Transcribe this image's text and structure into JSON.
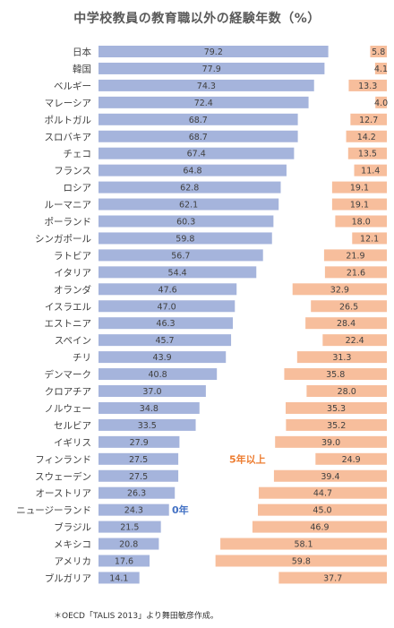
{
  "chart_data": {
    "type": "bar",
    "title": "中学校教員の教育職以外の経験年数（%）",
    "categories": [
      "日本",
      "韓国",
      "ベルギー",
      "マレーシア",
      "ポルトガル",
      "スロバキア",
      "チェコ",
      "フランス",
      "ロシア",
      "ルーマニア",
      "ポーランド",
      "シンガポール",
      "ラトビア",
      "イタリア",
      "オランダ",
      "イスラエル",
      "エストニア",
      "スペイン",
      "チリ",
      "デンマーク",
      "クロアチア",
      "ノルウェー",
      "セルビア",
      "イギリス",
      "フィンランド",
      "スウェーデン",
      "オーストリア",
      "ニュージーランド",
      "ブラジル",
      "メキシコ",
      "アメリカ",
      "ブルガリア"
    ],
    "series": [
      {
        "name": "0年",
        "color": "#a5b4dc",
        "values": [
          79.2,
          77.9,
          74.3,
          72.4,
          68.7,
          68.7,
          67.4,
          64.8,
          62.8,
          62.1,
          60.3,
          59.8,
          56.7,
          54.4,
          47.6,
          47.0,
          46.3,
          45.7,
          43.9,
          40.8,
          37.0,
          34.8,
          33.5,
          27.9,
          27.5,
          27.5,
          26.3,
          24.3,
          21.5,
          20.8,
          17.6,
          14.1
        ]
      },
      {
        "name": "5年以上",
        "color": "#f7be9c",
        "values": [
          5.8,
          4.1,
          13.3,
          4.0,
          12.7,
          14.2,
          13.5,
          11.4,
          19.1,
          19.1,
          18.0,
          12.1,
          21.9,
          21.6,
          32.9,
          26.5,
          28.4,
          22.4,
          31.3,
          35.8,
          28.0,
          35.3,
          35.2,
          39.0,
          24.9,
          39.4,
          44.7,
          45.0,
          46.9,
          58.1,
          59.8,
          37.7
        ]
      }
    ],
    "xlim": [
      0,
      100
    ],
    "grid": false,
    "legend": "none"
  },
  "labels": {
    "zero": "0年",
    "five_plus": "5年以上"
  },
  "note": "＊OECD「TALIS 2013」より舞田敏彦作成。"
}
